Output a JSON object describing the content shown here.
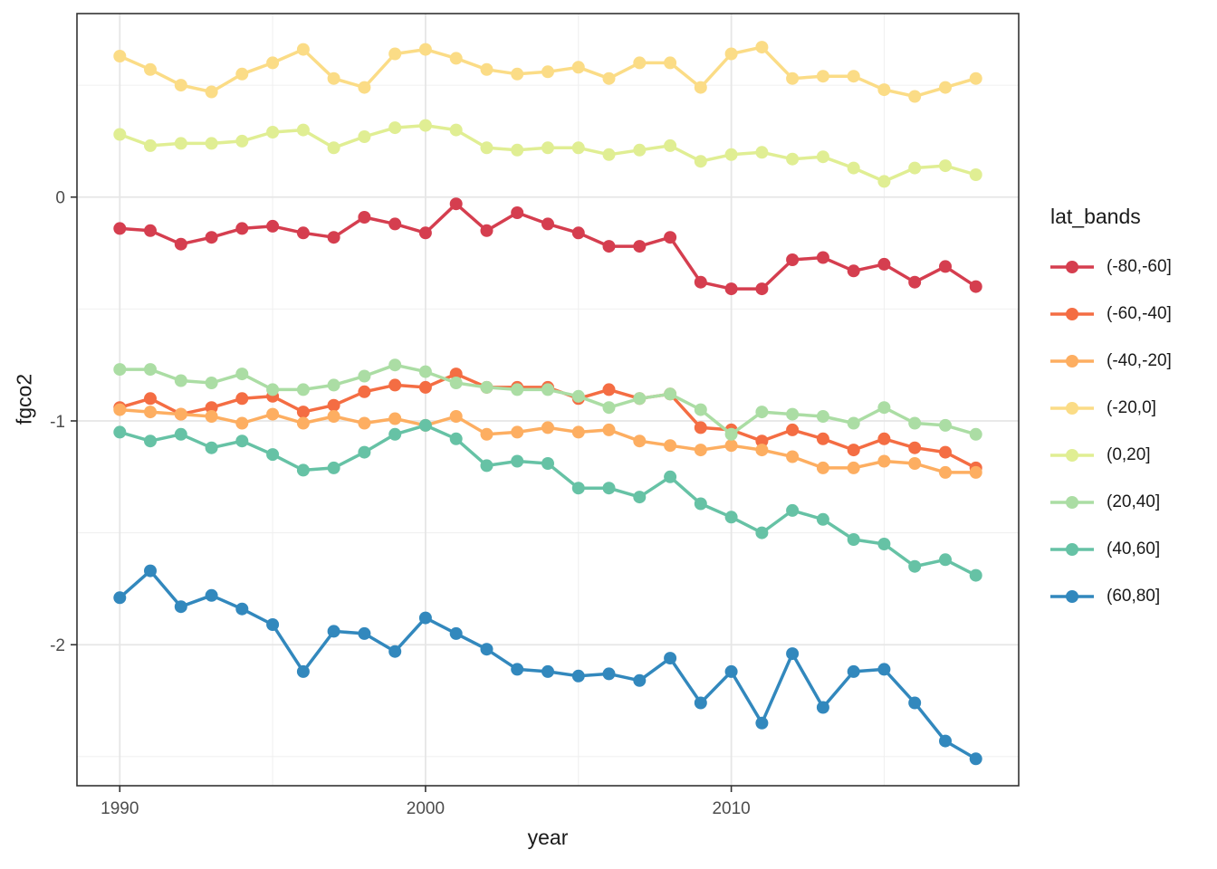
{
  "chart_data": {
    "type": "line",
    "title": "",
    "xlabel": "year",
    "ylabel": "fgco2",
    "legend_title": "lat_bands",
    "legend_position": "right",
    "grid": true,
    "x": [
      1990,
      1991,
      1992,
      1993,
      1994,
      1995,
      1996,
      1997,
      1998,
      1999,
      2000,
      2001,
      2002,
      2003,
      2004,
      2005,
      2006,
      2007,
      2008,
      2009,
      2010,
      2011,
      2012,
      2013,
      2014,
      2015,
      2016,
      2017,
      2018
    ],
    "x_ticks": [
      1990,
      2000,
      2010
    ],
    "x_minor_ticks": [
      1995,
      2005,
      2015
    ],
    "y_ticks": [
      0,
      -1,
      -2
    ],
    "y_minor_ticks": [
      0.5,
      -0.5,
      -1.5,
      -2.5
    ],
    "xlim": [
      1988.6,
      2019.4
    ],
    "ylim": [
      -2.63,
      0.82
    ],
    "axis_text_color": "#4d4d4d",
    "grid_major_color": "#e6e6e6",
    "grid_minor_color": "#f0f0f0",
    "panel_border_color": "#333333",
    "series": [
      {
        "name": "(-80,-60]",
        "color": "#d53e4f",
        "values": [
          -0.14,
          -0.15,
          -0.21,
          -0.18,
          -0.14,
          -0.13,
          -0.16,
          -0.18,
          -0.09,
          -0.12,
          -0.16,
          -0.03,
          -0.15,
          -0.07,
          -0.12,
          -0.16,
          -0.22,
          -0.22,
          -0.18,
          -0.38,
          -0.41,
          -0.41,
          -0.28,
          -0.27,
          -0.33,
          -0.3,
          -0.38,
          -0.31,
          -0.4
        ]
      },
      {
        "name": "(-60,-40]",
        "color": "#f46d43",
        "values": [
          -0.94,
          -0.9,
          -0.97,
          -0.94,
          -0.9,
          -0.89,
          -0.96,
          -0.93,
          -0.87,
          -0.84,
          -0.85,
          -0.79,
          -0.85,
          -0.85,
          -0.85,
          -0.9,
          -0.86,
          -0.9,
          -0.88,
          -1.03,
          -1.04,
          -1.09,
          -1.04,
          -1.08,
          -1.13,
          -1.08,
          -1.12,
          -1.14,
          -1.21
        ]
      },
      {
        "name": "(-40,-20]",
        "color": "#fdae61",
        "values": [
          -0.95,
          -0.96,
          -0.97,
          -0.98,
          -1.01,
          -0.97,
          -1.01,
          -0.98,
          -1.01,
          -0.99,
          -1.02,
          -0.98,
          -1.06,
          -1.05,
          -1.03,
          -1.05,
          -1.04,
          -1.09,
          -1.11,
          -1.13,
          -1.11,
          -1.13,
          -1.16,
          -1.21,
          -1.21,
          -1.18,
          -1.19,
          -1.23,
          -1.23
        ]
      },
      {
        "name": "(-20,0]",
        "color": "#fbdc86",
        "values": [
          0.63,
          0.57,
          0.5,
          0.47,
          0.55,
          0.6,
          0.66,
          0.53,
          0.49,
          0.64,
          0.66,
          0.62,
          0.57,
          0.55,
          0.56,
          0.58,
          0.53,
          0.6,
          0.6,
          0.49,
          0.64,
          0.67,
          0.53,
          0.54,
          0.54,
          0.48,
          0.45,
          0.49,
          0.53
        ]
      },
      {
        "name": "(0,20]",
        "color": "#e0ee93",
        "values": [
          0.28,
          0.23,
          0.24,
          0.24,
          0.25,
          0.29,
          0.3,
          0.22,
          0.27,
          0.31,
          0.32,
          0.3,
          0.22,
          0.21,
          0.22,
          0.22,
          0.19,
          0.21,
          0.23,
          0.16,
          0.19,
          0.2,
          0.17,
          0.18,
          0.13,
          0.07,
          0.13,
          0.14,
          0.1
        ]
      },
      {
        "name": "(20,40]",
        "color": "#abdda4",
        "values": [
          -0.77,
          -0.77,
          -0.82,
          -0.83,
          -0.79,
          -0.86,
          -0.86,
          -0.84,
          -0.8,
          -0.75,
          -0.78,
          -0.83,
          -0.85,
          -0.86,
          -0.86,
          -0.89,
          -0.94,
          -0.9,
          -0.88,
          -0.95,
          -1.06,
          -0.96,
          -0.97,
          -0.98,
          -1.01,
          -0.94,
          -1.01,
          -1.02,
          -1.06
        ]
      },
      {
        "name": "(40,60]",
        "color": "#66c2a5",
        "values": [
          -1.05,
          -1.09,
          -1.06,
          -1.12,
          -1.09,
          -1.15,
          -1.22,
          -1.21,
          -1.14,
          -1.06,
          -1.02,
          -1.08,
          -1.2,
          -1.18,
          -1.19,
          -1.3,
          -1.3,
          -1.34,
          -1.25,
          -1.37,
          -1.43,
          -1.5,
          -1.4,
          -1.44,
          -1.53,
          -1.55,
          -1.65,
          -1.62,
          -1.69
        ]
      },
      {
        "name": "(60,80]",
        "color": "#3288bd",
        "values": [
          -1.79,
          -1.67,
          -1.83,
          -1.78,
          -1.84,
          -1.91,
          -2.12,
          -1.94,
          -1.95,
          -2.03,
          -1.88,
          -1.95,
          -2.02,
          -2.11,
          -2.12,
          -2.14,
          -2.13,
          -2.16,
          -2.06,
          -2.26,
          -2.12,
          -2.35,
          -2.04,
          -2.28,
          -2.12,
          -2.11,
          -2.26,
          -2.43,
          -2.51
        ]
      }
    ]
  }
}
